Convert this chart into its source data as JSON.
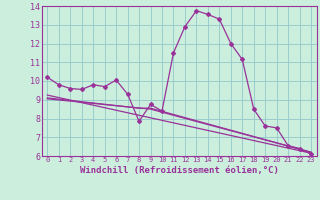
{
  "xlabel": "Windchill (Refroidissement éolien,°C)",
  "bg_color": "#cceedd",
  "grid_color": "#99cccc",
  "line_color": "#993399",
  "xlim": [
    -0.5,
    23.5
  ],
  "ylim": [
    6,
    14
  ],
  "yticks": [
    6,
    7,
    8,
    9,
    10,
    11,
    12,
    13,
    14
  ],
  "xticks": [
    0,
    1,
    2,
    3,
    4,
    5,
    6,
    7,
    8,
    9,
    10,
    11,
    12,
    13,
    14,
    15,
    16,
    17,
    18,
    19,
    20,
    21,
    22,
    23
  ],
  "curve1_x": [
    0,
    1,
    2,
    3,
    4,
    5,
    6,
    7,
    8,
    9,
    10,
    11,
    12,
    13,
    14,
    15,
    16,
    17,
    18,
    19,
    20,
    21,
    22,
    23
  ],
  "curve1_y": [
    10.2,
    9.8,
    9.6,
    9.55,
    9.8,
    9.7,
    10.05,
    9.3,
    7.85,
    8.75,
    8.4,
    11.5,
    12.9,
    13.75,
    13.55,
    13.3,
    12.0,
    11.15,
    8.5,
    7.6,
    7.5,
    6.55,
    6.4,
    6.1
  ],
  "trend1_x": [
    0,
    23
  ],
  "trend1_y": [
    9.25,
    6.15
  ],
  "trend2_x": [
    0,
    8,
    9,
    23
  ],
  "trend2_y": [
    9.1,
    8.55,
    8.55,
    6.2
  ],
  "trend3_x": [
    0,
    9,
    23
  ],
  "trend3_y": [
    9.05,
    8.5,
    6.2
  ]
}
